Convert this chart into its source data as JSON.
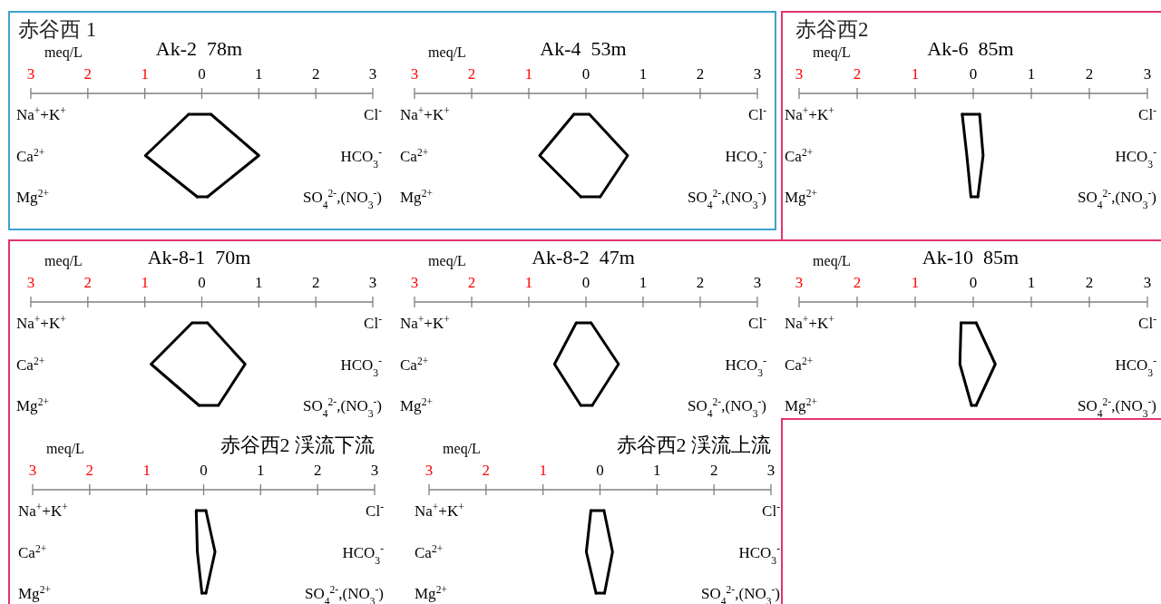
{
  "chart_data": [
    {
      "type": "line",
      "orientation": "horizontal",
      "title": "Ak-2  78m",
      "xlabel": "meq/L",
      "annotations": [
        "赤谷西 1"
      ],
      "categories": [
        "Na$^{+}$+K$^{+}$",
        "Ca$^{2+}$",
        "Mg$^{2+}$"
      ],
      "y2_categories": [
        "Cl$^{-}$",
        "HCO$_{3}$$^{-}$",
        "SO$_{4}$$^{2-}$,(NO$_{3}$$^{-}$)"
      ],
      "xlim": [
        -3,
        3
      ],
      "xticks": [
        {
          "value": -3,
          "label": "3"
        },
        {
          "value": -2,
          "label": "2"
        },
        {
          "value": -1,
          "label": "1"
        },
        0,
        1,
        2,
        3
      ],
      "series": [
        {
          "color": "#000000",
          "values": [
            -0.23,
            -0.99,
            -0.08
          ]
        },
        {
          "color": "#000000",
          "values": [
            0.16,
            1.0,
            0.1
          ]
        }
      ]
    },
    {
      "type": "line",
      "orientation": "horizontal",
      "title": "Ak-4  53m",
      "xlabel": "meq/L",
      "categories": [
        "Na$^{+}$+K$^{+}$",
        "Ca$^{2+}$",
        "Mg$^{2+}$"
      ],
      "y2_categories": [
        "Cl$^{-}$",
        "HCO$_{3}$$^{-}$",
        "SO$_{4}$$^{2-}$,(NO$_{3}$$^{-}$)"
      ],
      "xlim": [
        -3,
        3
      ],
      "xticks": [
        {
          "value": -3,
          "label": "3"
        },
        {
          "value": -2,
          "label": "2"
        },
        {
          "value": -1,
          "label": "1"
        },
        0,
        1,
        2,
        3
      ],
      "series": [
        {
          "color": "#000000",
          "values": [
            -0.21,
            -0.81,
            -0.09
          ]
        },
        {
          "color": "#000000",
          "values": [
            0.06,
            0.73,
            0.25
          ]
        }
      ]
    },
    {
      "type": "line",
      "orientation": "horizontal",
      "title": "Ak-6  85m",
      "xlabel": "meq/L",
      "annotations": [
        "赤谷西2"
      ],
      "categories": [
        "Na$^{+}$+K$^{+}$",
        "Ca$^{2+}$",
        "Mg$^{2+}$"
      ],
      "y2_categories": [
        "Cl$^{-}$",
        "HCO$_{3}$$^{-}$",
        "SO$_{4}$$^{2-}$,(NO$_{3}$$^{-}$)"
      ],
      "xlim": [
        -3,
        3
      ],
      "xticks": [
        {
          "value": -3,
          "label": "3"
        },
        {
          "value": -2,
          "label": "2"
        },
        {
          "value": -1,
          "label": "1"
        },
        0,
        1,
        2,
        3
      ],
      "series": [
        {
          "color": "#000000",
          "values": [
            -0.19,
            -0.11,
            -0.04
          ]
        },
        {
          "color": "#000000",
          "values": [
            0.11,
            0.17,
            0.08
          ]
        }
      ]
    },
    {
      "type": "line",
      "orientation": "horizontal",
      "title": "Ak-8-1  70m",
      "xlabel": "meq/L",
      "categories": [
        "Na$^{+}$+K$^{+}$",
        "Ca$^{2+}$",
        "Mg$^{2+}$"
      ],
      "y2_categories": [
        "Cl$^{-}$",
        "HCO$_{3}$$^{-}$",
        "SO$_{4}$$^{2-}$,(NO$_{3}$$^{-}$)"
      ],
      "xlim": [
        -3,
        3
      ],
      "xticks": [
        {
          "value": -3,
          "label": "3"
        },
        {
          "value": -2,
          "label": "2"
        },
        {
          "value": -1,
          "label": "1"
        },
        0,
        1,
        2,
        3
      ],
      "series": [
        {
          "color": "#000000",
          "values": [
            -0.17,
            -0.89,
            -0.05
          ]
        },
        {
          "color": "#000000",
          "values": [
            0.1,
            0.76,
            0.29
          ]
        }
      ]
    },
    {
      "type": "line",
      "orientation": "horizontal",
      "title": "Ak-8-2  47m",
      "xlabel": "meq/L",
      "categories": [
        "Na$^{+}$+K$^{+}$",
        "Ca$^{2+}$",
        "Mg$^{2+}$"
      ],
      "y2_categories": [
        "Cl$^{-}$",
        "HCO$_{3}$$^{-}$",
        "SO$_{4}$$^{2-}$,(NO$_{3}$$^{-}$)"
      ],
      "xlim": [
        -3,
        3
      ],
      "xticks": [
        {
          "value": -3,
          "label": "3"
        },
        {
          "value": -2,
          "label": "2"
        },
        {
          "value": -1,
          "label": "1"
        },
        0,
        1,
        2,
        3
      ],
      "series": [
        {
          "color": "#000000",
          "values": [
            -0.17,
            -0.55,
            -0.09
          ]
        },
        {
          "color": "#000000",
          "values": [
            0.09,
            0.57,
            0.11
          ]
        }
      ]
    },
    {
      "type": "line",
      "orientation": "horizontal",
      "title": "Ak-10  85m",
      "xlabel": "meq/L",
      "categories": [
        "Na$^{+}$+K$^{+}$",
        "Ca$^{2+}$",
        "Mg$^{2+}$"
      ],
      "y2_categories": [
        "Cl$^{-}$",
        "HCO$_{3}$$^{-}$",
        "SO$_{4}$$^{2-}$,(NO$_{3}$$^{-}$)"
      ],
      "xlim": [
        -3,
        3
      ],
      "xticks": [
        {
          "value": -3,
          "label": "3"
        },
        {
          "value": -2,
          "label": "2"
        },
        {
          "value": -1,
          "label": "1"
        },
        0,
        1,
        2,
        3
      ],
      "series": [
        {
          "color": "#000000",
          "values": [
            -0.21,
            -0.23,
            -0.03
          ]
        },
        {
          "color": "#000000",
          "values": [
            0.05,
            0.38,
            0.05
          ]
        }
      ]
    },
    {
      "type": "line",
      "orientation": "horizontal",
      "title": "赤谷西2 渓流下流",
      "xlabel": "meq/L",
      "categories": [
        "Na$^{+}$+K$^{+}$",
        "Ca$^{2+}$",
        "Mg$^{2+}$"
      ],
      "y2_categories": [
        "Cl$^{-}$",
        "HCO$_{3}$$^{-}$",
        "SO$_{4}$$^{2-}$,(NO$_{3}$$^{-}$)"
      ],
      "xlim": [
        -3,
        3
      ],
      "xticks": [
        {
          "value": -3,
          "label": "3"
        },
        {
          "value": -2,
          "label": "2"
        },
        {
          "value": -1,
          "label": "1"
        },
        0,
        1,
        2,
        3
      ],
      "series": [
        {
          "color": "#000000",
          "values": [
            -0.13,
            -0.11,
            -0.03
          ]
        },
        {
          "color": "#000000",
          "values": [
            0.04,
            0.2,
            0.04
          ]
        }
      ]
    },
    {
      "type": "line",
      "orientation": "horizontal",
      "title": "赤谷西2 渓流上流",
      "xlabel": "meq/L",
      "categories": [
        "Na$^{+}$+K$^{+}$",
        "Ca$^{2+}$",
        "Mg$^{2+}$"
      ],
      "y2_categories": [
        "Cl$^{-}$",
        "HCO$_{3}$$^{-}$",
        "SO$_{4}$$^{2-}$,(NO$_{3}$$^{-}$)"
      ],
      "xlim": [
        -3,
        3
      ],
      "xticks": [
        {
          "value": -3,
          "label": "3"
        },
        {
          "value": -2,
          "label": "2"
        },
        {
          "value": -1,
          "label": "1"
        },
        0,
        1,
        2,
        3
      ],
      "series": [
        {
          "color": "#000000",
          "values": [
            -0.16,
            -0.24,
            -0.07
          ]
        },
        {
          "color": "#000000",
          "values": [
            0.07,
            0.22,
            0.08
          ]
        }
      ]
    }
  ]
}
